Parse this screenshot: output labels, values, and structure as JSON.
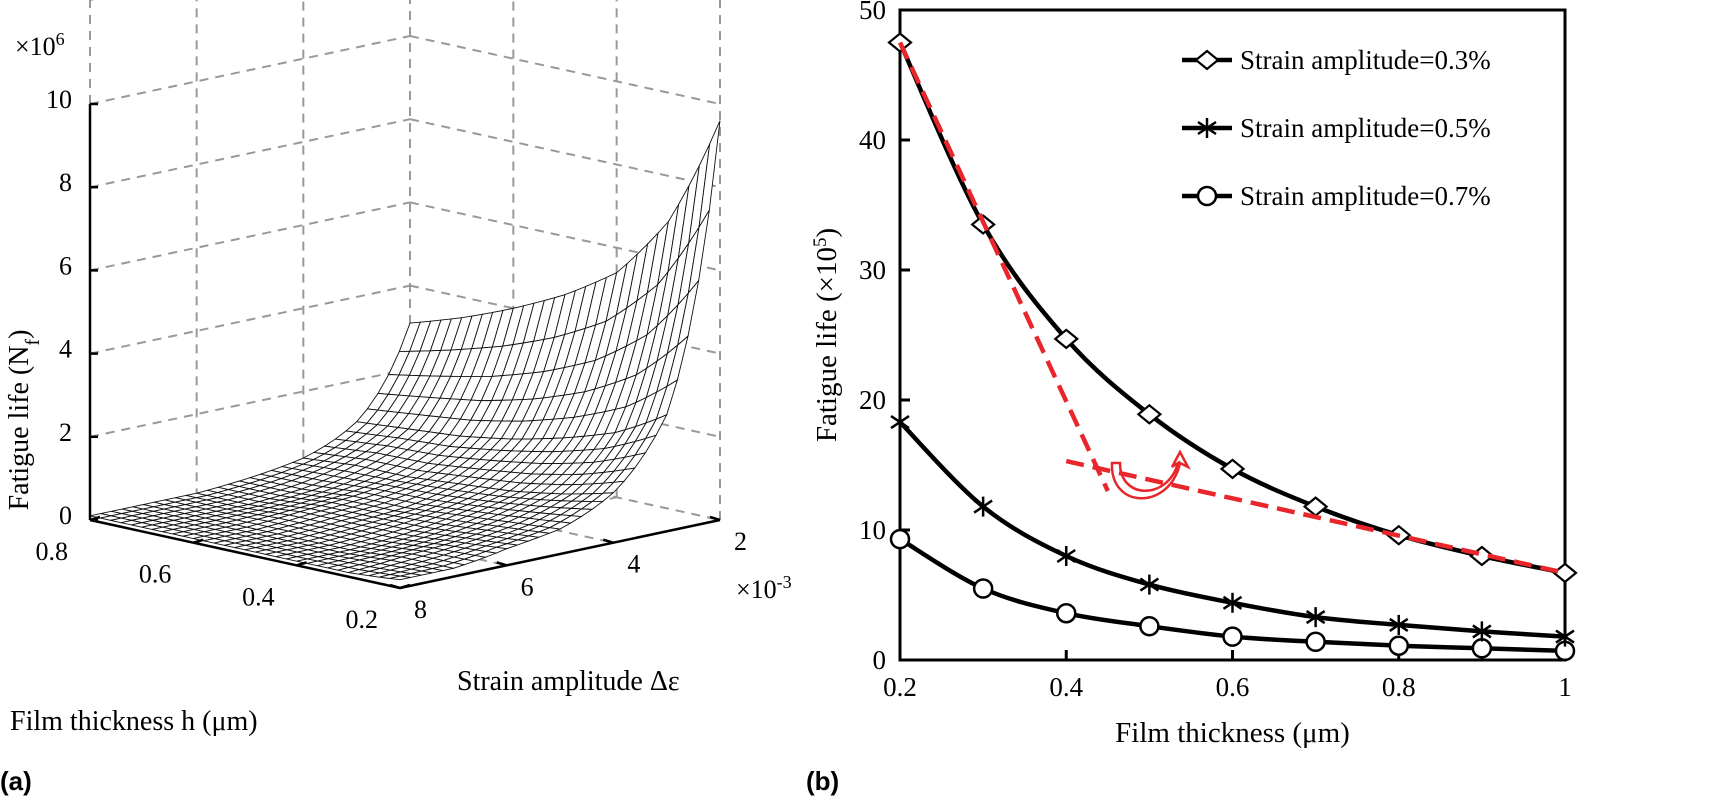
{
  "chart_data": [
    {
      "panel_label": "(a)",
      "type": "surface",
      "zlabel": "Fatigue life (N",
      "zlabel_sub": "f",
      "zlabel_end": ")",
      "z_multiplier": "×10",
      "z_multiplier_exp": "6",
      "xlabel": "Film thickness h (μm)",
      "ylabel": "Strain amplitude Δε",
      "y_multiplier": "×10",
      "y_multiplier_exp": "-3",
      "z_ticks": [
        "0",
        "2",
        "4",
        "6",
        "8",
        "10"
      ],
      "x_ticks": [
        "0.8",
        "0.6",
        "0.4",
        "0.2"
      ],
      "y_ticks": [
        "8",
        "6",
        "4",
        "2"
      ],
      "xlim": [
        0.2,
        0.8
      ],
      "ylim": [
        2,
        8
      ],
      "zlim": [
        0,
        10
      ],
      "grid": true,
      "h_values": [
        0.2,
        0.3,
        0.4,
        0.5,
        0.6,
        0.7,
        0.8
      ],
      "strain_values": [
        2,
        3,
        4,
        5,
        6,
        7,
        8
      ],
      "z_values": [
        [
          9.6,
          2.8,
          1.2,
          0.6,
          0.4,
          0.2,
          0.2
        ],
        [
          6.9,
          2.1,
          0.9,
          0.5,
          0.3,
          0.2,
          0.1
        ],
        [
          5.4,
          1.7,
          0.7,
          0.4,
          0.2,
          0.1,
          0.1
        ],
        [
          4.6,
          1.4,
          0.6,
          0.3,
          0.2,
          0.1,
          0.1
        ],
        [
          4.0,
          1.2,
          0.5,
          0.3,
          0.2,
          0.1,
          0.1
        ],
        [
          3.5,
          1.1,
          0.5,
          0.2,
          0.1,
          0.1,
          0.1
        ],
        [
          3.1,
          1.0,
          0.4,
          0.2,
          0.1,
          0.1,
          0.1
        ]
      ]
    },
    {
      "panel_label": "(b)",
      "type": "line",
      "xlabel": "Film thickness (μm)",
      "ylabel": "Fatigue life (×10",
      "ylabel_exp": "5",
      "ylabel_end": ")",
      "x": [
        0.2,
        0.3,
        0.4,
        0.5,
        0.6,
        0.7,
        0.8,
        0.9,
        1.0
      ],
      "xlim": [
        0.2,
        1
      ],
      "ylim": [
        0,
        50
      ],
      "x_ticks": [
        "0.2",
        "0.4",
        "0.6",
        "0.8",
        "1"
      ],
      "y_ticks": [
        "0",
        "10",
        "20",
        "30",
        "40",
        "50"
      ],
      "legend": "top-right",
      "series": [
        {
          "name": "Strain amplitude=0.7%",
          "marker": "circle",
          "values": [
            9.3,
            5.5,
            3.6,
            2.6,
            1.8,
            1.4,
            1.1,
            0.9,
            0.7
          ]
        },
        {
          "name": "Strain amplitude=0.5%",
          "marker": "asterisk",
          "values": [
            18.3,
            11.8,
            8.0,
            5.8,
            4.4,
            3.3,
            2.7,
            2.2,
            1.8
          ]
        },
        {
          "name": "Strain amplitude=0.3%",
          "marker": "diamond",
          "values": [
            47.5,
            33.5,
            24.7,
            18.9,
            14.7,
            11.8,
            9.6,
            8.0,
            6.7
          ]
        }
      ],
      "annotations": [
        {
          "type": "dashed-line",
          "color": "#e8262b",
          "from": [
            0.2,
            47.5
          ],
          "to": [
            0.45,
            13
          ]
        },
        {
          "type": "dashed-line",
          "color": "#e8262b",
          "from": [
            0.4,
            15.3
          ],
          "to": [
            1.0,
            6.7
          ]
        },
        {
          "type": "curved-arrow",
          "color": "#e8262b"
        }
      ]
    }
  ]
}
